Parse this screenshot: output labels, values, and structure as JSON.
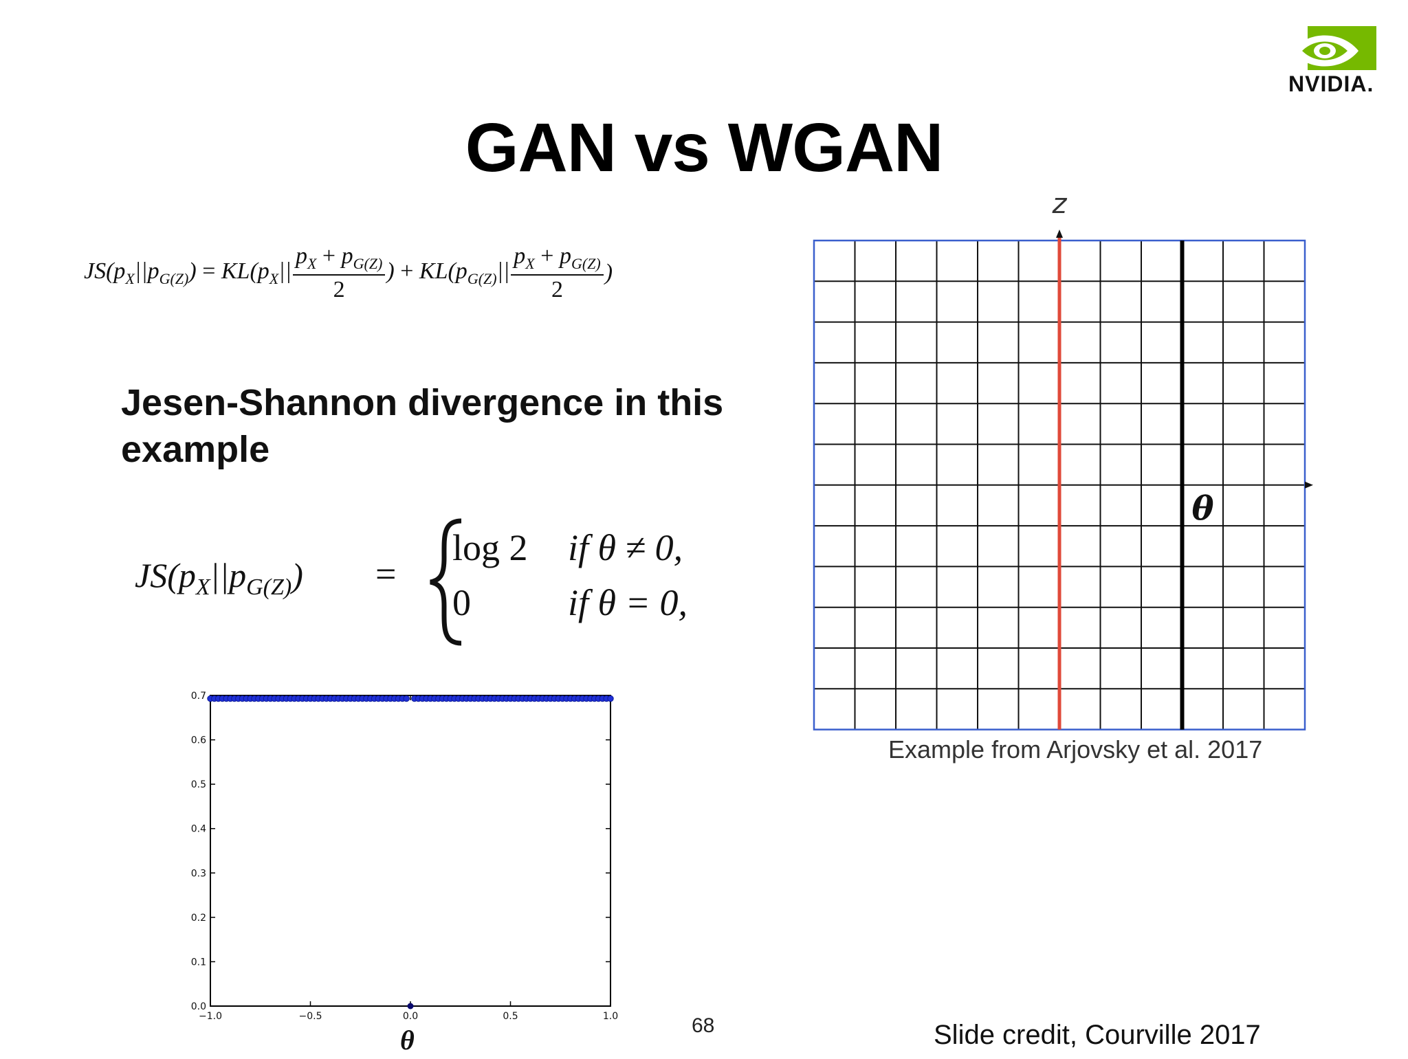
{
  "slide": {
    "title": "GAN vs WGAN",
    "logo_text": "NVIDIA.",
    "js_heading": "Jesen-Shannon divergence in this example",
    "page_number": "68",
    "credit": "Slide credit, Courville 2017",
    "grid_caption": "Example from Arjovsky et al. 2017",
    "grid_axis_z": "z",
    "grid_axis_theta": "θ",
    "plot_xlabel": "θ"
  },
  "formulas": {
    "js_def": {
      "lhs": "JS(p",
      "sub_x": "X",
      "sep": "||p",
      "sub_gz": "G(Z)",
      "eq": ") = KL(p",
      "frac_num": "p",
      "frac_den": "2",
      "mid": ") + KL(p"
    },
    "js_cases": {
      "case1_value": "log 2",
      "case1_cond": "if θ ≠ 0,",
      "case2_value": "0",
      "case2_cond": "if θ = 0,"
    }
  },
  "colors": {
    "logo_green": "#76b900",
    "grid_border": "#3a5fcd",
    "red_line": "#e04a3a",
    "point_blue": "#1f2fd6",
    "point_navy": "#0a0a6e"
  },
  "chart_data": {
    "type": "scatter",
    "xlim": [
      -1.0,
      1.0
    ],
    "ylim": [
      0.0,
      0.7
    ],
    "xticks": [
      "−1.0",
      "−0.5",
      "0.0",
      "0.5",
      "1.0"
    ],
    "yticks": [
      "0.0",
      "0.1",
      "0.2",
      "0.3",
      "0.4",
      "0.5",
      "0.6",
      "0.7"
    ],
    "xlabel": "θ",
    "series": [
      {
        "x_range": [
          -1.0,
          1.0
        ],
        "y": 0.693,
        "excluding_x": 0.0
      },
      {
        "x": [
          0.0
        ],
        "y": [
          0.0
        ]
      }
    ]
  }
}
